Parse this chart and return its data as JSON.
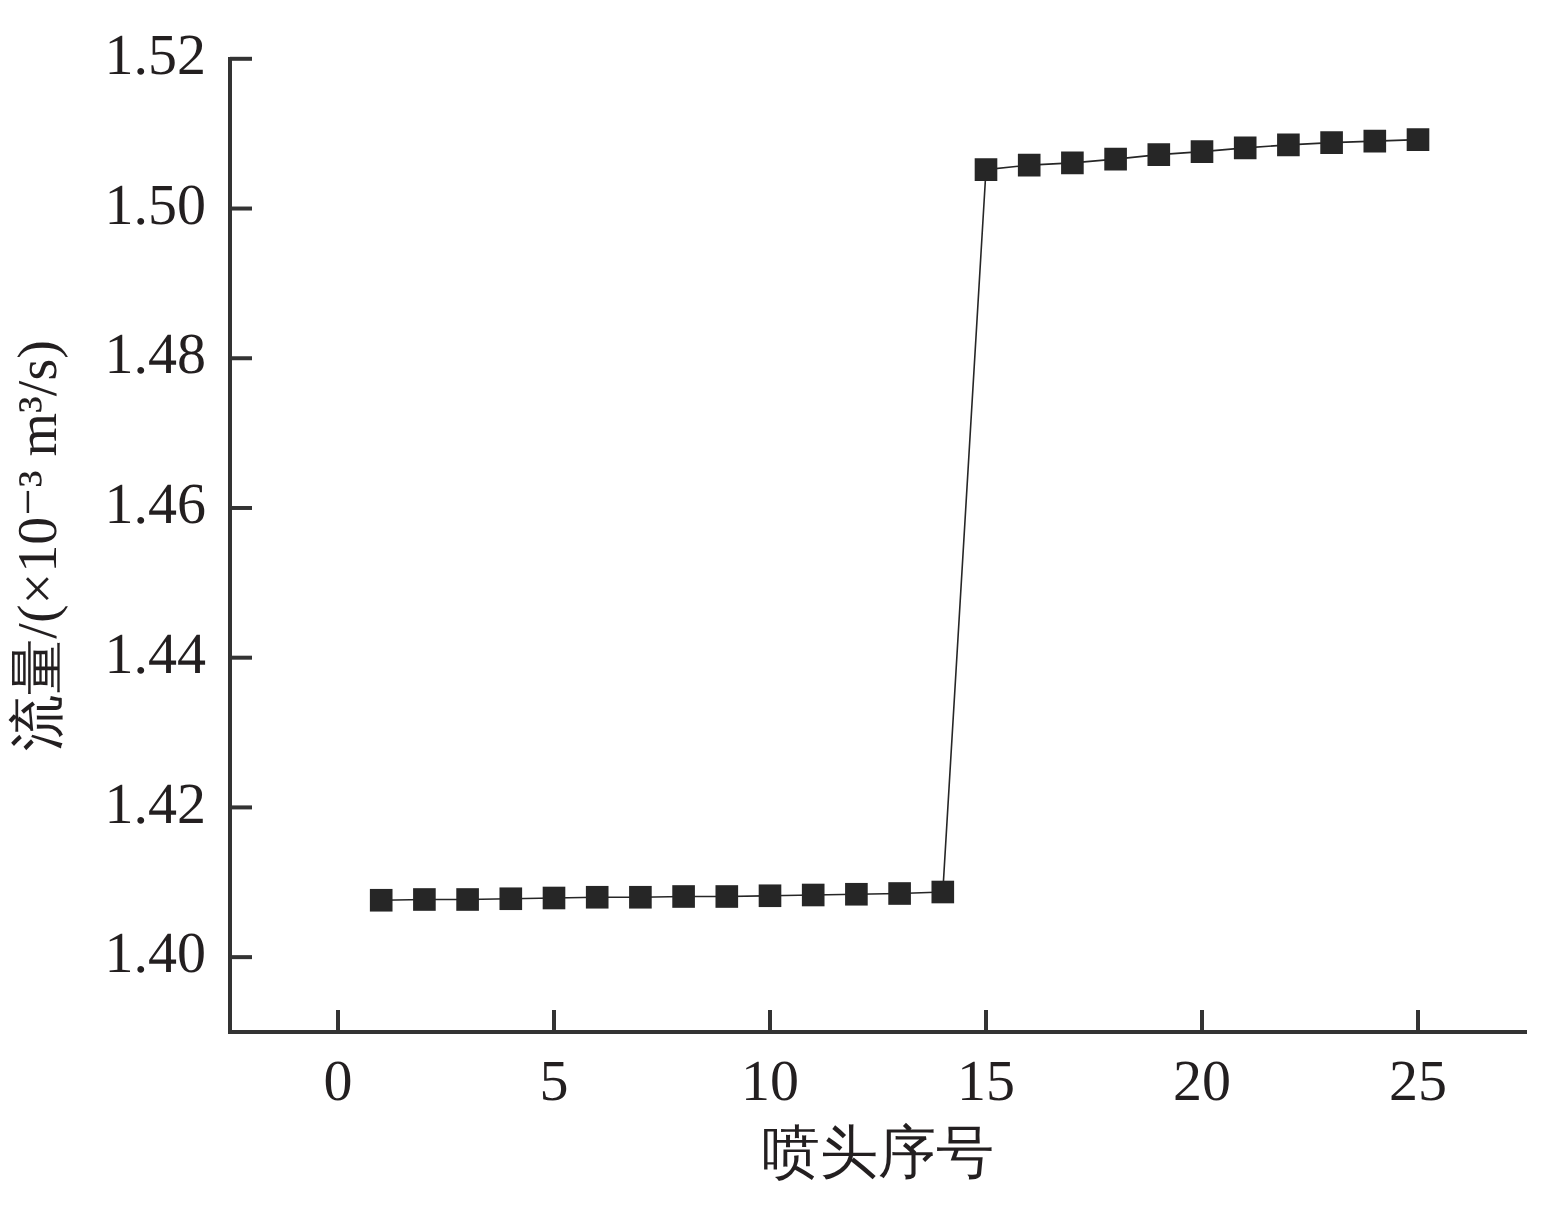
{
  "chart_data": {
    "type": "line",
    "xlabel": "喷头序号",
    "ylabel": "流量/(×10⁻³ m³/s)",
    "x": [
      1,
      2,
      3,
      4,
      5,
      6,
      7,
      8,
      9,
      10,
      11,
      12,
      13,
      14,
      15,
      16,
      17,
      18,
      19,
      20,
      21,
      22,
      23,
      24,
      25
    ],
    "series": [
      {
        "color": "#262626",
        "values": [
          1.4076,
          1.4077,
          1.4077,
          1.4078,
          1.4079,
          1.408,
          1.408,
          1.4081,
          1.4081,
          1.4082,
          1.4083,
          1.4084,
          1.4085,
          1.4087,
          1.5052,
          1.5058,
          1.5061,
          1.5066,
          1.5072,
          1.5076,
          1.5081,
          1.5085,
          1.5088,
          1.509,
          1.5092
        ]
      }
    ],
    "xlim": [
      -2.5,
      27.5
    ],
    "xticks": [
      0,
      5,
      10,
      15,
      20,
      25
    ],
    "ylim": [
      1.39,
      1.52
    ],
    "yticks": [
      {
        "value": 1.4,
        "label": "1.40"
      },
      1.42,
      1.44,
      1.46,
      1.48,
      {
        "value": 1.5,
        "label": "1.50"
      },
      1.52
    ],
    "grid": false,
    "legend": false,
    "marker": "square",
    "line_style": "solid"
  }
}
